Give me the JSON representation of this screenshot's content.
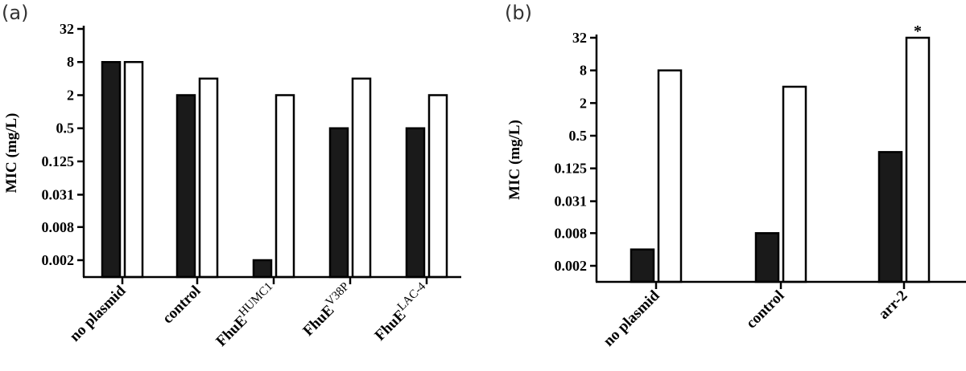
{
  "chart_data": [
    {
      "type": "bar",
      "panel_label": "(a)",
      "ylabel": "MIC (mg/L)",
      "yscale": "log2",
      "yticks": [
        "32",
        "8",
        "2",
        "0.5",
        "0.125",
        "0.031",
        "0.008",
        "0.002"
      ],
      "categories": [
        {
          "main": "no plasmid",
          "sup": ""
        },
        {
          "main": "control",
          "sup": ""
        },
        {
          "main": "FhuE",
          "sup": "HUMC1"
        },
        {
          "main": "FhuE",
          "sup": "V38P"
        },
        {
          "main": "FhuE",
          "sup": "LAC-4"
        }
      ],
      "series": [
        {
          "fill": "#1a1a1a",
          "values": [
            8,
            2,
            0.002,
            0.5,
            0.5
          ]
        },
        {
          "fill": "#ffffff",
          "values": [
            8,
            4,
            2,
            4,
            2
          ]
        }
      ],
      "annotations": []
    },
    {
      "type": "bar",
      "panel_label": "(b)",
      "ylabel": "MIC (mg/L)",
      "yscale": "log2",
      "yticks": [
        "32",
        "8",
        "2",
        "0.5",
        "0.125",
        "0.031",
        "0.008",
        "0.002"
      ],
      "categories": [
        {
          "main": "no plasmid",
          "sup": ""
        },
        {
          "main": "control",
          "sup": ""
        },
        {
          "main": "arr-2",
          "sup": ""
        }
      ],
      "series": [
        {
          "fill": "#1a1a1a",
          "values": [
            0.004,
            0.008,
            0.25
          ]
        },
        {
          "fill": "#ffffff",
          "values": [
            8,
            4,
            32
          ]
        }
      ],
      "annotations": [
        {
          "text": "*",
          "category_index": 2,
          "series_index": 1
        }
      ]
    }
  ]
}
